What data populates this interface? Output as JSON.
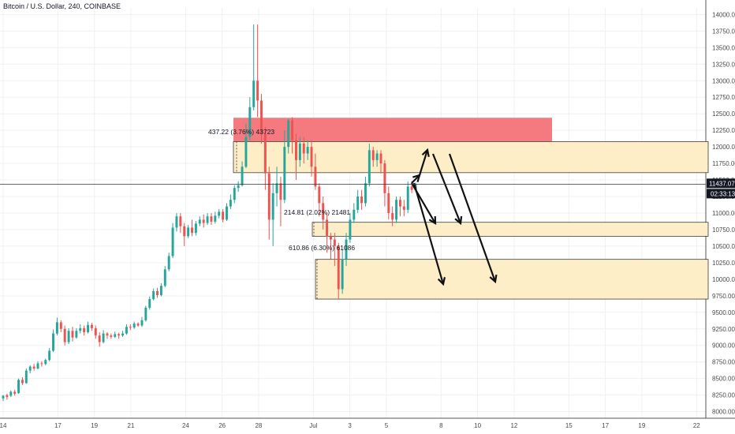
{
  "header": {
    "symbol": "Bitcoin / U.S. Dollar, 240, COINBASE"
  },
  "chart_data": {
    "type": "candlestick",
    "ylim": [
      7900,
      14100
    ],
    "y_ticks": [
      8000,
      8250,
      8500,
      8750,
      9000,
      9250,
      9500,
      9750,
      10000,
      10250,
      10500,
      10750,
      11000,
      11250,
      11500,
      11750,
      12000,
      12250,
      12500,
      12750,
      13000,
      13250,
      13500,
      13750,
      14000
    ],
    "x_ticks": [
      {
        "label": "14",
        "t": 0
      },
      {
        "label": "17",
        "t": 18
      },
      {
        "label": "19",
        "t": 30
      },
      {
        "label": "21",
        "t": 42
      },
      {
        "label": "24",
        "t": 60
      },
      {
        "label": "26",
        "t": 72
      },
      {
        "label": "28",
        "t": 84
      },
      {
        "label": "Jul",
        "t": 102
      },
      {
        "label": "3",
        "t": 114
      },
      {
        "label": "5",
        "t": 126
      },
      {
        "label": "8",
        "t": 144
      },
      {
        "label": "10",
        "t": 156
      },
      {
        "label": "12",
        "t": 168
      },
      {
        "label": "15",
        "t": 186
      },
      {
        "label": "17",
        "t": 198
      },
      {
        "label": "19",
        "t": 210
      },
      {
        "label": "22",
        "t": 228
      }
    ],
    "t_range": [
      0,
      230
    ],
    "current_price": {
      "value": 11437.07,
      "label": "11437.07",
      "countdown": "02:33:13"
    },
    "candles": [
      [
        8200,
        8240,
        8160,
        8250
      ],
      [
        8250,
        8220,
        8180,
        8270
      ],
      [
        8240,
        8300,
        8220,
        8320
      ],
      [
        8300,
        8270,
        8240,
        8330
      ],
      [
        8280,
        8480,
        8270,
        8500
      ],
      [
        8480,
        8430,
        8400,
        8520
      ],
      [
        8430,
        8620,
        8420,
        8650
      ],
      [
        8620,
        8680,
        8580,
        8700
      ],
      [
        8680,
        8650,
        8620,
        8720
      ],
      [
        8650,
        8730,
        8640,
        8760
      ],
      [
        8730,
        8720,
        8680,
        8760
      ],
      [
        8720,
        8780,
        8700,
        8800
      ],
      [
        8780,
        8920,
        8760,
        8960
      ],
      [
        8920,
        9180,
        8900,
        9240
      ],
      [
        9180,
        9350,
        9150,
        9420
      ],
      [
        9350,
        9250,
        9200,
        9380
      ],
      [
        9250,
        9050,
        9000,
        9300
      ],
      [
        9050,
        9220,
        9020,
        9260
      ],
      [
        9220,
        9120,
        9060,
        9280
      ],
      [
        9120,
        9220,
        9100,
        9260
      ],
      [
        9220,
        9260,
        9180,
        9320
      ],
      [
        9260,
        9200,
        9150,
        9300
      ],
      [
        9200,
        9310,
        9180,
        9360
      ],
      [
        9310,
        9260,
        9220,
        9340
      ],
      [
        9260,
        9150,
        9100,
        9300
      ],
      [
        9150,
        9050,
        8980,
        9200
      ],
      [
        9050,
        9180,
        9030,
        9230
      ],
      [
        9180,
        9150,
        9100,
        9200
      ],
      [
        9150,
        9130,
        9100,
        9180
      ],
      [
        9130,
        9170,
        9110,
        9210
      ],
      [
        9170,
        9150,
        9100,
        9190
      ],
      [
        9150,
        9180,
        9130,
        9220
      ],
      [
        9180,
        9280,
        9160,
        9320
      ],
      [
        9280,
        9270,
        9230,
        9320
      ],
      [
        9270,
        9330,
        9250,
        9360
      ],
      [
        9330,
        9300,
        9280,
        9350
      ],
      [
        9300,
        9380,
        9280,
        9430
      ],
      [
        9380,
        9570,
        9360,
        9600
      ],
      [
        9570,
        9700,
        9540,
        9740
      ],
      [
        9700,
        9820,
        9680,
        9860
      ],
      [
        9820,
        9760,
        9720,
        9870
      ],
      [
        9760,
        9900,
        9740,
        9940
      ],
      [
        9900,
        10150,
        9880,
        10200
      ],
      [
        10150,
        10350,
        10120,
        10400
      ],
      [
        10350,
        10780,
        10320,
        10850
      ],
      [
        10780,
        10950,
        10720,
        11000
      ],
      [
        10950,
        10800,
        10700,
        11000
      ],
      [
        10800,
        10650,
        10500,
        10850
      ],
      [
        10650,
        10780,
        10620,
        10820
      ],
      [
        10780,
        10700,
        10650,
        10900
      ],
      [
        10700,
        10840,
        10660,
        10880
      ],
      [
        10840,
        10900,
        10800,
        10950
      ],
      [
        10900,
        10850,
        10780,
        10980
      ],
      [
        10850,
        10950,
        10820,
        11000
      ],
      [
        10950,
        10870,
        10820,
        11000
      ],
      [
        10870,
        10960,
        10840,
        11020
      ],
      [
        10960,
        11020,
        10920,
        11060
      ],
      [
        11020,
        10900,
        10860,
        11060
      ],
      [
        10900,
        11100,
        10880,
        11150
      ],
      [
        11100,
        11200,
        11060,
        11280
      ],
      [
        11200,
        11380,
        11150,
        11420
      ],
      [
        11380,
        11420,
        11320,
        11480
      ],
      [
        11420,
        11700,
        11400,
        11780
      ],
      [
        11700,
        12150,
        11680,
        12350
      ],
      [
        12150,
        12600,
        12100,
        12750
      ],
      [
        12600,
        13000,
        12550,
        13850
      ],
      [
        13000,
        12700,
        12450,
        13850
      ],
      [
        12700,
        12200,
        12050,
        12800
      ],
      [
        12200,
        11600,
        11350,
        12300
      ],
      [
        11600,
        10900,
        10600,
        11700
      ],
      [
        10900,
        11300,
        10500,
        11450
      ],
      [
        11300,
        11450,
        11100,
        11700
      ],
      [
        11450,
        11200,
        10800,
        11550
      ],
      [
        11200,
        12000,
        11150,
        12250
      ],
      [
        12000,
        12400,
        11900,
        12420
      ],
      [
        12400,
        12100,
        11900,
        12450
      ],
      [
        12100,
        11800,
        11500,
        12200
      ],
      [
        11800,
        12050,
        11700,
        12150
      ],
      [
        12050,
        11900,
        11750,
        12150
      ],
      [
        11900,
        12000,
        11800,
        12100
      ],
      [
        12000,
        11700,
        11550,
        12100
      ],
      [
        11700,
        11400,
        11350,
        11900
      ],
      [
        11400,
        11150,
        10950,
        11450
      ],
      [
        11150,
        10900,
        10750,
        11250
      ],
      [
        10900,
        10650,
        10400,
        11000
      ],
      [
        10650,
        10600,
        10300,
        10700
      ],
      [
        10600,
        10500,
        10200,
        10700
      ],
      [
        10500,
        9850,
        9700,
        10550
      ],
      [
        9850,
        10300,
        9780,
        10450
      ],
      [
        10300,
        10600,
        10200,
        10700
      ],
      [
        10600,
        10900,
        10550,
        11000
      ],
      [
        10900,
        11050,
        10850,
        11150
      ],
      [
        11050,
        11250,
        11000,
        11350
      ],
      [
        11250,
        11150,
        11050,
        11350
      ],
      [
        11150,
        11450,
        11100,
        11550
      ],
      [
        11450,
        11950,
        11400,
        12050
      ],
      [
        11950,
        11800,
        11700,
        12000
      ],
      [
        11800,
        11900,
        11700,
        11950
      ],
      [
        11900,
        11750,
        11600,
        11950
      ],
      [
        11750,
        11300,
        11100,
        11800
      ],
      [
        11300,
        11000,
        10900,
        11400
      ],
      [
        11000,
        10900,
        10800,
        11100
      ],
      [
        10900,
        11200,
        10850,
        11250
      ],
      [
        11200,
        11100,
        10950,
        11250
      ],
      [
        11100,
        11050,
        10950,
        11200
      ],
      [
        11050,
        11400,
        11000,
        11480
      ],
      [
        11400,
        11350,
        11300,
        11480
      ],
      [
        11350,
        11437,
        11320,
        11460
      ]
    ],
    "zones": [
      {
        "kind": "supply",
        "y_low": 12080,
        "y_high": 12440,
        "color": "#f47a7f"
      },
      {
        "kind": "range",
        "y_low": 11610,
        "y_high": 12080,
        "color": "#fdeec8"
      },
      {
        "kind": "range",
        "y_low": 10650,
        "y_high": 10860,
        "color": "#fdeec8"
      },
      {
        "kind": "range",
        "y_low": 9700,
        "y_high": 10300,
        "color": "#fdeec8"
      }
    ],
    "measurements": [
      "437.22 (3.76%) 43723",
      "214.81 (2.02%) 21481",
      "610.86 (6.30%) 61086"
    ]
  }
}
